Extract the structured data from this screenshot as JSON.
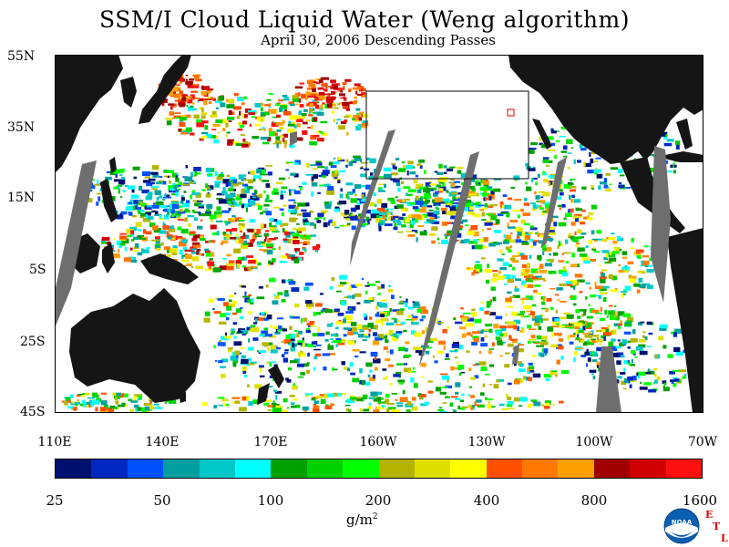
{
  "title": "SSM/I Cloud Liquid Water (Weng algorithm)",
  "subtitle": "April 30, 2006  Descending Passes",
  "lat_labels": [
    "55N",
    "35N",
    "15N",
    "5S",
    "25S",
    "45S"
  ],
  "lon_labels": [
    "110E",
    "140E",
    "170E",
    "160W",
    "130W",
    "100W",
    "70W"
  ],
  "colorbar": {
    "tick_labels": [
      "25",
      "50",
      "100",
      "200",
      "400",
      "800",
      "1600"
    ],
    "units_base": "g/m",
    "units_exp": "2",
    "colors": [
      "#00106e",
      "#0028c0",
      "#0050ff",
      "#00a0a0",
      "#00c8c8",
      "#00ffff",
      "#00a000",
      "#00d000",
      "#00ff00",
      "#b4b400",
      "#e0e000",
      "#ffff00",
      "#ff5000",
      "#ff7800",
      "#ffa000",
      "#a00000",
      "#d00000",
      "#ff1010"
    ]
  },
  "logo": {
    "text": "NOAA",
    "letters": [
      "E",
      "T",
      "L"
    ]
  },
  "map": {
    "land_color": "#151515",
    "swath_gap_color": "#6e6e6e",
    "box_color": "#000000",
    "marker_color": "#e00000"
  }
}
